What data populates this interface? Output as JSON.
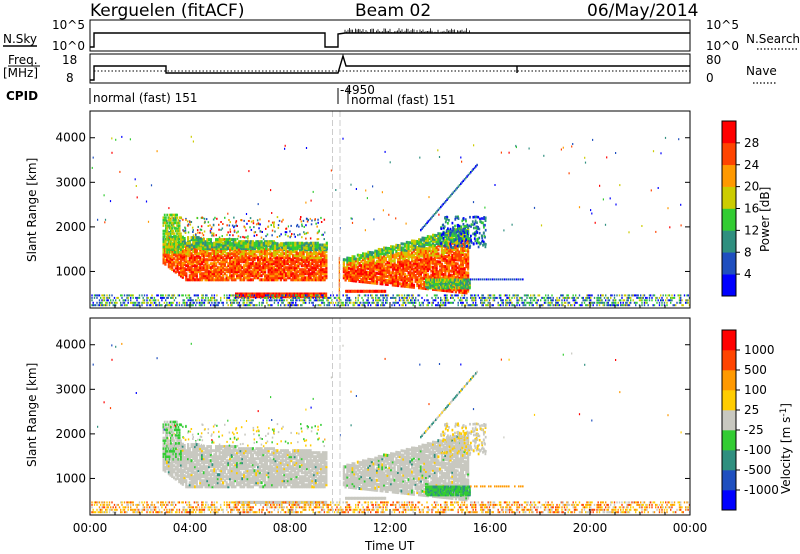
{
  "header": {
    "station": "Kerguelen (fitACF)",
    "beam": "Beam 02",
    "date": "06/May/2014"
  },
  "strips": {
    "nsky_label": "N.Sky",
    "nsky_ticks": [
      "10^5",
      "10^0"
    ],
    "nsearch_label": "N.Search",
    "nsearch_ticks": [
      "10^5",
      "10^0"
    ],
    "freq_label": "Freq.",
    "freq_unit": "[MHz]",
    "freq_ticks": [
      "18",
      "8"
    ],
    "nave_label": "Nave",
    "nave_ticks": [
      "80",
      "0"
    ],
    "cpid_label": "CPID",
    "cpid_entries": [
      {
        "text": "normal (fast) 151"
      },
      {
        "text": "-4950"
      },
      {
        "text": "normal (fast) 151"
      }
    ]
  },
  "chart_data": [
    {
      "type": "heatmap",
      "name": "power",
      "ylabel": "Slant Range [km]",
      "yticks": [
        1000,
        2000,
        3000,
        4000
      ],
      "ylim": [
        180,
        4600
      ],
      "colorbar_label": "Power [dB]",
      "colorbar_ticks": [
        "28",
        "24",
        "20",
        "16",
        "12",
        "8",
        "4"
      ],
      "colors": [
        "#0000ff",
        "#1f4fbf",
        "#2f8f7f",
        "#33cc33",
        "#cccc00",
        "#ff9900",
        "#ff4400",
        "#ff0000"
      ]
    },
    {
      "type": "heatmap",
      "name": "velocity",
      "ylabel": "Slant Range [km]",
      "yticks": [
        1000,
        2000,
        3000,
        4000
      ],
      "ylim": [
        180,
        4600
      ],
      "colorbar_label": "Velocity [m s",
      "colorbar_label_sup": "-1",
      "colorbar_label_end": "]",
      "colorbar_ticks": [
        "1000",
        "500",
        "100",
        "25",
        "-25",
        "-100",
        "-500",
        "-1000"
      ],
      "colors": [
        "#0000ff",
        "#1f4fbf",
        "#2f8f7f",
        "#33cc33",
        "#c8c8c0",
        "#ffcc00",
        "#ff9900",
        "#ff4400",
        "#ff0000"
      ]
    }
  ],
  "xaxis": {
    "label": "Time UT",
    "ticks": [
      "00:00",
      "04:00",
      "08:00",
      "12:00",
      "16:00",
      "20:00",
      "00:00"
    ],
    "range_hours": [
      0,
      24
    ]
  }
}
